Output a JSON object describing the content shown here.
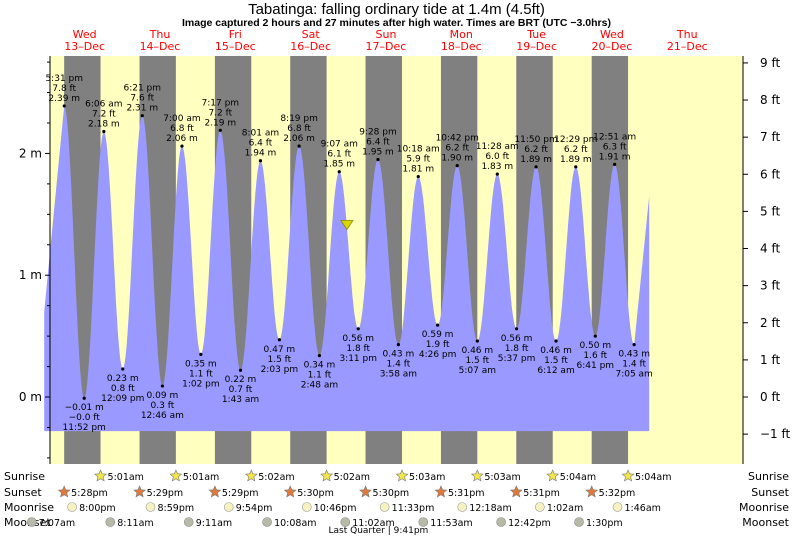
{
  "title": "Tabatinga: falling  ordinary tide at 1.4m (4.5ft)",
  "subtitle": "Image captured 2 hours and 27 minutes after high water. Times are BRT (UTC −3.0hrs)",
  "colors": {
    "day": "#ffffc0",
    "night": "#808080",
    "water": "#9999ff",
    "date": "#ff0000",
    "marker": "#d8d800"
  },
  "chart_data": {
    "type": "area",
    "xlim_days": [
      12.54,
      21.74
    ],
    "ylim_m": [
      -0.55,
      2.8
    ],
    "left_ticks": [
      {
        "v": 2,
        "label": "2 m"
      },
      {
        "v": 1,
        "label": "1 m"
      },
      {
        "v": 0,
        "label": "0 m"
      }
    ],
    "right_ticks": [
      {
        "ft": 9,
        "label": "9 ft"
      },
      {
        "ft": 8,
        "label": "8 ft"
      },
      {
        "ft": 7,
        "label": "7 ft"
      },
      {
        "ft": 6,
        "label": "6 ft"
      },
      {
        "ft": 5,
        "label": "5 ft"
      },
      {
        "ft": 4,
        "label": "4 ft"
      },
      {
        "ft": 3,
        "label": "3 ft"
      },
      {
        "ft": 2,
        "label": "2 ft"
      },
      {
        "ft": 1,
        "label": "1 ft"
      },
      {
        "ft": 0,
        "label": "0 ft"
      },
      {
        "ft": -1,
        "label": "−1 ft"
      }
    ],
    "dates": [
      {
        "day": "Wed",
        "date": "13–Dec",
        "t": 13.0
      },
      {
        "day": "Thu",
        "date": "14–Dec",
        "t": 14.0
      },
      {
        "day": "Fri",
        "date": "15–Dec",
        "t": 15.0
      },
      {
        "day": "Sat",
        "date": "16–Dec",
        "t": 16.0
      },
      {
        "day": "Sun",
        "date": "17–Dec",
        "t": 17.0
      },
      {
        "day": "Mon",
        "date": "18–Dec",
        "t": 18.0
      },
      {
        "day": "Tue",
        "date": "19–Dec",
        "t": 19.0
      },
      {
        "day": "Wed",
        "date": "20–Dec",
        "t": 20.0
      },
      {
        "day": "Thu",
        "date": "21–Dec",
        "t": 21.0
      }
    ],
    "tides": [
      {
        "type": "high",
        "t": 12.729,
        "time": "5:31 pm",
        "m": "2.39 m",
        "ft": "7.8 ft",
        "h": 2.39
      },
      {
        "type": "low",
        "t": 12.994,
        "time": "11:52 pm",
        "m": "−0.01 m",
        "ft": "−0.0 ft",
        "h": -0.01
      },
      {
        "type": "high",
        "t": 13.255,
        "time": "6:06 am",
        "m": "2.18 m",
        "ft": "7.2 ft",
        "h": 2.18
      },
      {
        "type": "low",
        "t": 13.506,
        "time": "12:09 pm",
        "m": "0.23 m",
        "ft": "0.8 ft",
        "h": 0.23
      },
      {
        "type": "high",
        "t": 13.765,
        "time": "6:21 pm",
        "m": "2.31 m",
        "ft": "7.6 ft",
        "h": 2.31
      },
      {
        "type": "low",
        "t": 14.032,
        "time": "12:46 am",
        "m": "0.09 m",
        "ft": "0.3 ft",
        "h": 0.09
      },
      {
        "type": "high",
        "t": 14.292,
        "time": "7:00 am",
        "m": "2.06 m",
        "ft": "6.8 ft",
        "h": 2.06
      },
      {
        "type": "low",
        "t": 14.543,
        "time": "1:02 pm",
        "m": "0.35 m",
        "ft": "1.1 ft",
        "h": 0.35
      },
      {
        "type": "high",
        "t": 14.801,
        "time": "7:17 pm",
        "m": "2.19 m",
        "ft": "7.2 ft",
        "h": 2.19
      },
      {
        "type": "low",
        "t": 15.069,
        "time": "1:43 am",
        "m": "0.22 m",
        "ft": "0.7 ft",
        "h": 0.22
      },
      {
        "type": "high",
        "t": 15.334,
        "time": "8:01 am",
        "m": "1.94 m",
        "ft": "6.4 ft",
        "h": 1.94
      },
      {
        "type": "low",
        "t": 15.585,
        "time": "2:03 pm",
        "m": "0.47 m",
        "ft": "1.5 ft",
        "h": 0.47
      },
      {
        "type": "high",
        "t": 15.847,
        "time": "8:19 pm",
        "m": "2.06 m",
        "ft": "6.8 ft",
        "h": 2.06
      },
      {
        "type": "low",
        "t": 16.117,
        "time": "2:48 am",
        "m": "0.34 m",
        "ft": "1.1 ft",
        "h": 0.34
      },
      {
        "type": "high",
        "t": 16.38,
        "time": "9:07 am",
        "m": "1.85 m",
        "ft": "6.1 ft",
        "h": 1.85
      },
      {
        "type": "low",
        "t": 16.632,
        "time": "3:11 pm",
        "m": "0.56 m",
        "ft": "1.8 ft",
        "h": 0.56
      },
      {
        "type": "high",
        "t": 16.894,
        "time": "9:28 pm",
        "m": "1.95 m",
        "ft": "6.4 ft",
        "h": 1.95
      },
      {
        "type": "low",
        "t": 17.165,
        "time": "3:58 am",
        "m": "0.43 m",
        "ft": "1.4 ft",
        "h": 0.43
      },
      {
        "type": "high",
        "t": 17.429,
        "time": "10:18 am",
        "m": "1.81 m",
        "ft": "5.9 ft",
        "h": 1.81
      },
      {
        "type": "low",
        "t": 17.686,
        "time": "4:26 pm",
        "m": "0.59 m",
        "ft": "1.9 ft",
        "h": 0.59
      },
      {
        "type": "high",
        "t": 17.946,
        "time": "10:42 pm",
        "m": "1.90 m",
        "ft": "6.2 ft",
        "h": 1.9
      },
      {
        "type": "low",
        "t": 18.213,
        "time": "5:07 am",
        "m": "0.46 m",
        "ft": "1.5 ft",
        "h": 0.46
      },
      {
        "type": "high",
        "t": 18.478,
        "time": "11:28 am",
        "m": "1.83 m",
        "ft": "6.0 ft",
        "h": 1.83
      },
      {
        "type": "low",
        "t": 18.734,
        "time": "5:37 pm",
        "m": "0.56 m",
        "ft": "1.8 ft",
        "h": 0.56
      },
      {
        "type": "high",
        "t": 18.993,
        "time": "11:50 pm",
        "m": "1.89 m",
        "ft": "6.2 ft",
        "h": 1.89
      },
      {
        "type": "low",
        "t": 19.258,
        "time": "6:12 am",
        "m": "0.46 m",
        "ft": "1.5 ft",
        "h": 0.46
      },
      {
        "type": "high",
        "t": 19.52,
        "time": "12:29 pm",
        "m": "1.89 m",
        "ft": "6.2 ft",
        "h": 1.89
      },
      {
        "type": "low",
        "t": 19.779,
        "time": "6:41 pm",
        "m": "0.50 m",
        "ft": "1.6 ft",
        "h": 0.5
      },
      {
        "type": "high",
        "t": 20.036,
        "time": "12:51 am",
        "m": "1.91 m",
        "ft": "6.3 ft",
        "h": 1.91
      },
      {
        "type": "low",
        "t": 20.295,
        "time": "7:05 am",
        "m": "0.43 m",
        "ft": "1.4 ft",
        "h": 0.43
      }
    ],
    "current": {
      "t": 16.482,
      "h": 1.4
    },
    "sunrise_row": {
      "label": "Sunrise",
      "events": [
        {
          "t": 13.211,
          "text": "5:01am"
        },
        {
          "t": 14.211,
          "text": "5:01am"
        },
        {
          "t": 15.212,
          "text": "5:02am"
        },
        {
          "t": 16.212,
          "text": "5:02am"
        },
        {
          "t": 17.213,
          "text": "5:03am"
        },
        {
          "t": 18.213,
          "text": "5:03am"
        },
        {
          "t": 19.214,
          "text": "5:04am"
        },
        {
          "t": 20.214,
          "text": "5:04am"
        }
      ]
    },
    "sunset_row": {
      "label": "Sunset",
      "events": [
        {
          "t": 12.728,
          "text": "5:28pm"
        },
        {
          "t": 13.729,
          "text": "5:29pm"
        },
        {
          "t": 14.729,
          "text": "5:29pm"
        },
        {
          "t": 15.729,
          "text": "5:30pm"
        },
        {
          "t": 16.729,
          "text": "5:30pm"
        },
        {
          "t": 17.73,
          "text": "5:31pm"
        },
        {
          "t": 18.73,
          "text": "5:31pm"
        },
        {
          "t": 19.731,
          "text": "5:32pm"
        }
      ]
    },
    "moonrise_row": {
      "label": "Moonrise",
      "events": [
        {
          "t": 12.833,
          "text": "8:00pm"
        },
        {
          "t": 13.874,
          "text": "8:59pm"
        },
        {
          "t": 14.913,
          "text": "9:54pm"
        },
        {
          "t": 15.949,
          "text": "10:46pm"
        },
        {
          "t": 16.983,
          "text": "11:33pm"
        },
        {
          "t": 18.013,
          "text": "12:18am"
        },
        {
          "t": 19.043,
          "text": "1:02am"
        },
        {
          "t": 20.074,
          "text": "1:46am"
        }
      ]
    },
    "moonset_row": {
      "label": "Moonset",
      "events": [
        {
          "t": 12.297,
          "text": "7:07am"
        },
        {
          "t": 13.34,
          "text": "8:11am"
        },
        {
          "t": 14.382,
          "text": "9:11am"
        },
        {
          "t": 15.422,
          "text": "10:08am"
        },
        {
          "t": 16.46,
          "text": "11:02am"
        },
        {
          "t": 17.495,
          "text": "11:53am"
        },
        {
          "t": 18.529,
          "text": "12:42pm"
        },
        {
          "t": 19.563,
          "text": "1:30pm"
        }
      ]
    },
    "moon_phase": {
      "text": "Last Quarter | 9:41pm",
      "t": 16.9
    }
  }
}
